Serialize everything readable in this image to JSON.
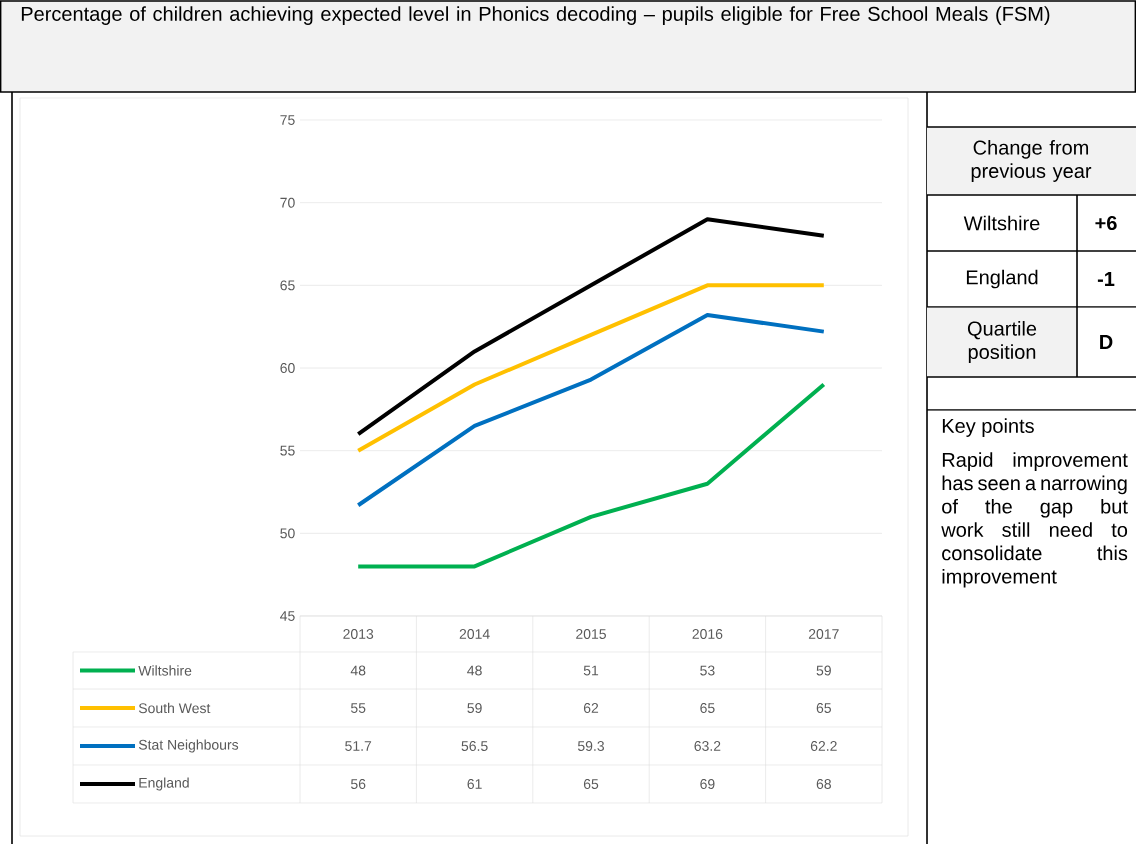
{
  "chart_data": {
    "type": "line",
    "title": "Percentage of children achieving expected level in Phonics decoding – pupils eligible for Free School Meals (FSM)",
    "categories": [
      "2013",
      "2014",
      "2015",
      "2016",
      "2017"
    ],
    "series": [
      {
        "name": "Wiltshire",
        "color": "#00b050",
        "values": [
          48,
          48,
          51,
          53,
          59
        ]
      },
      {
        "name": "South West",
        "color": "#ffc000",
        "values": [
          55,
          59,
          62,
          65,
          65
        ]
      },
      {
        "name": "Stat Neighbours",
        "color": "#0070c0",
        "values": [
          51.7,
          56.5,
          59.3,
          63.2,
          62.2
        ]
      },
      {
        "name": "England",
        "color": "#000000",
        "values": [
          56,
          61,
          65,
          69,
          68
        ]
      }
    ],
    "ylim": [
      45,
      75
    ],
    "yticks": [
      45,
      50,
      55,
      60,
      65,
      70,
      75
    ],
    "grid": "y",
    "legend": "bottom",
    "marker": "none",
    "line_style": "solid",
    "data_labels": true,
    "annotations": [
      "Change from previous year",
      "Wiltshire",
      "+6",
      "England",
      "-1",
      "Quartile position",
      "D",
      "Key points",
      "Rapid improvement has seen a narrowing of the gap but work still need to consolidate this improvement"
    ]
  }
}
